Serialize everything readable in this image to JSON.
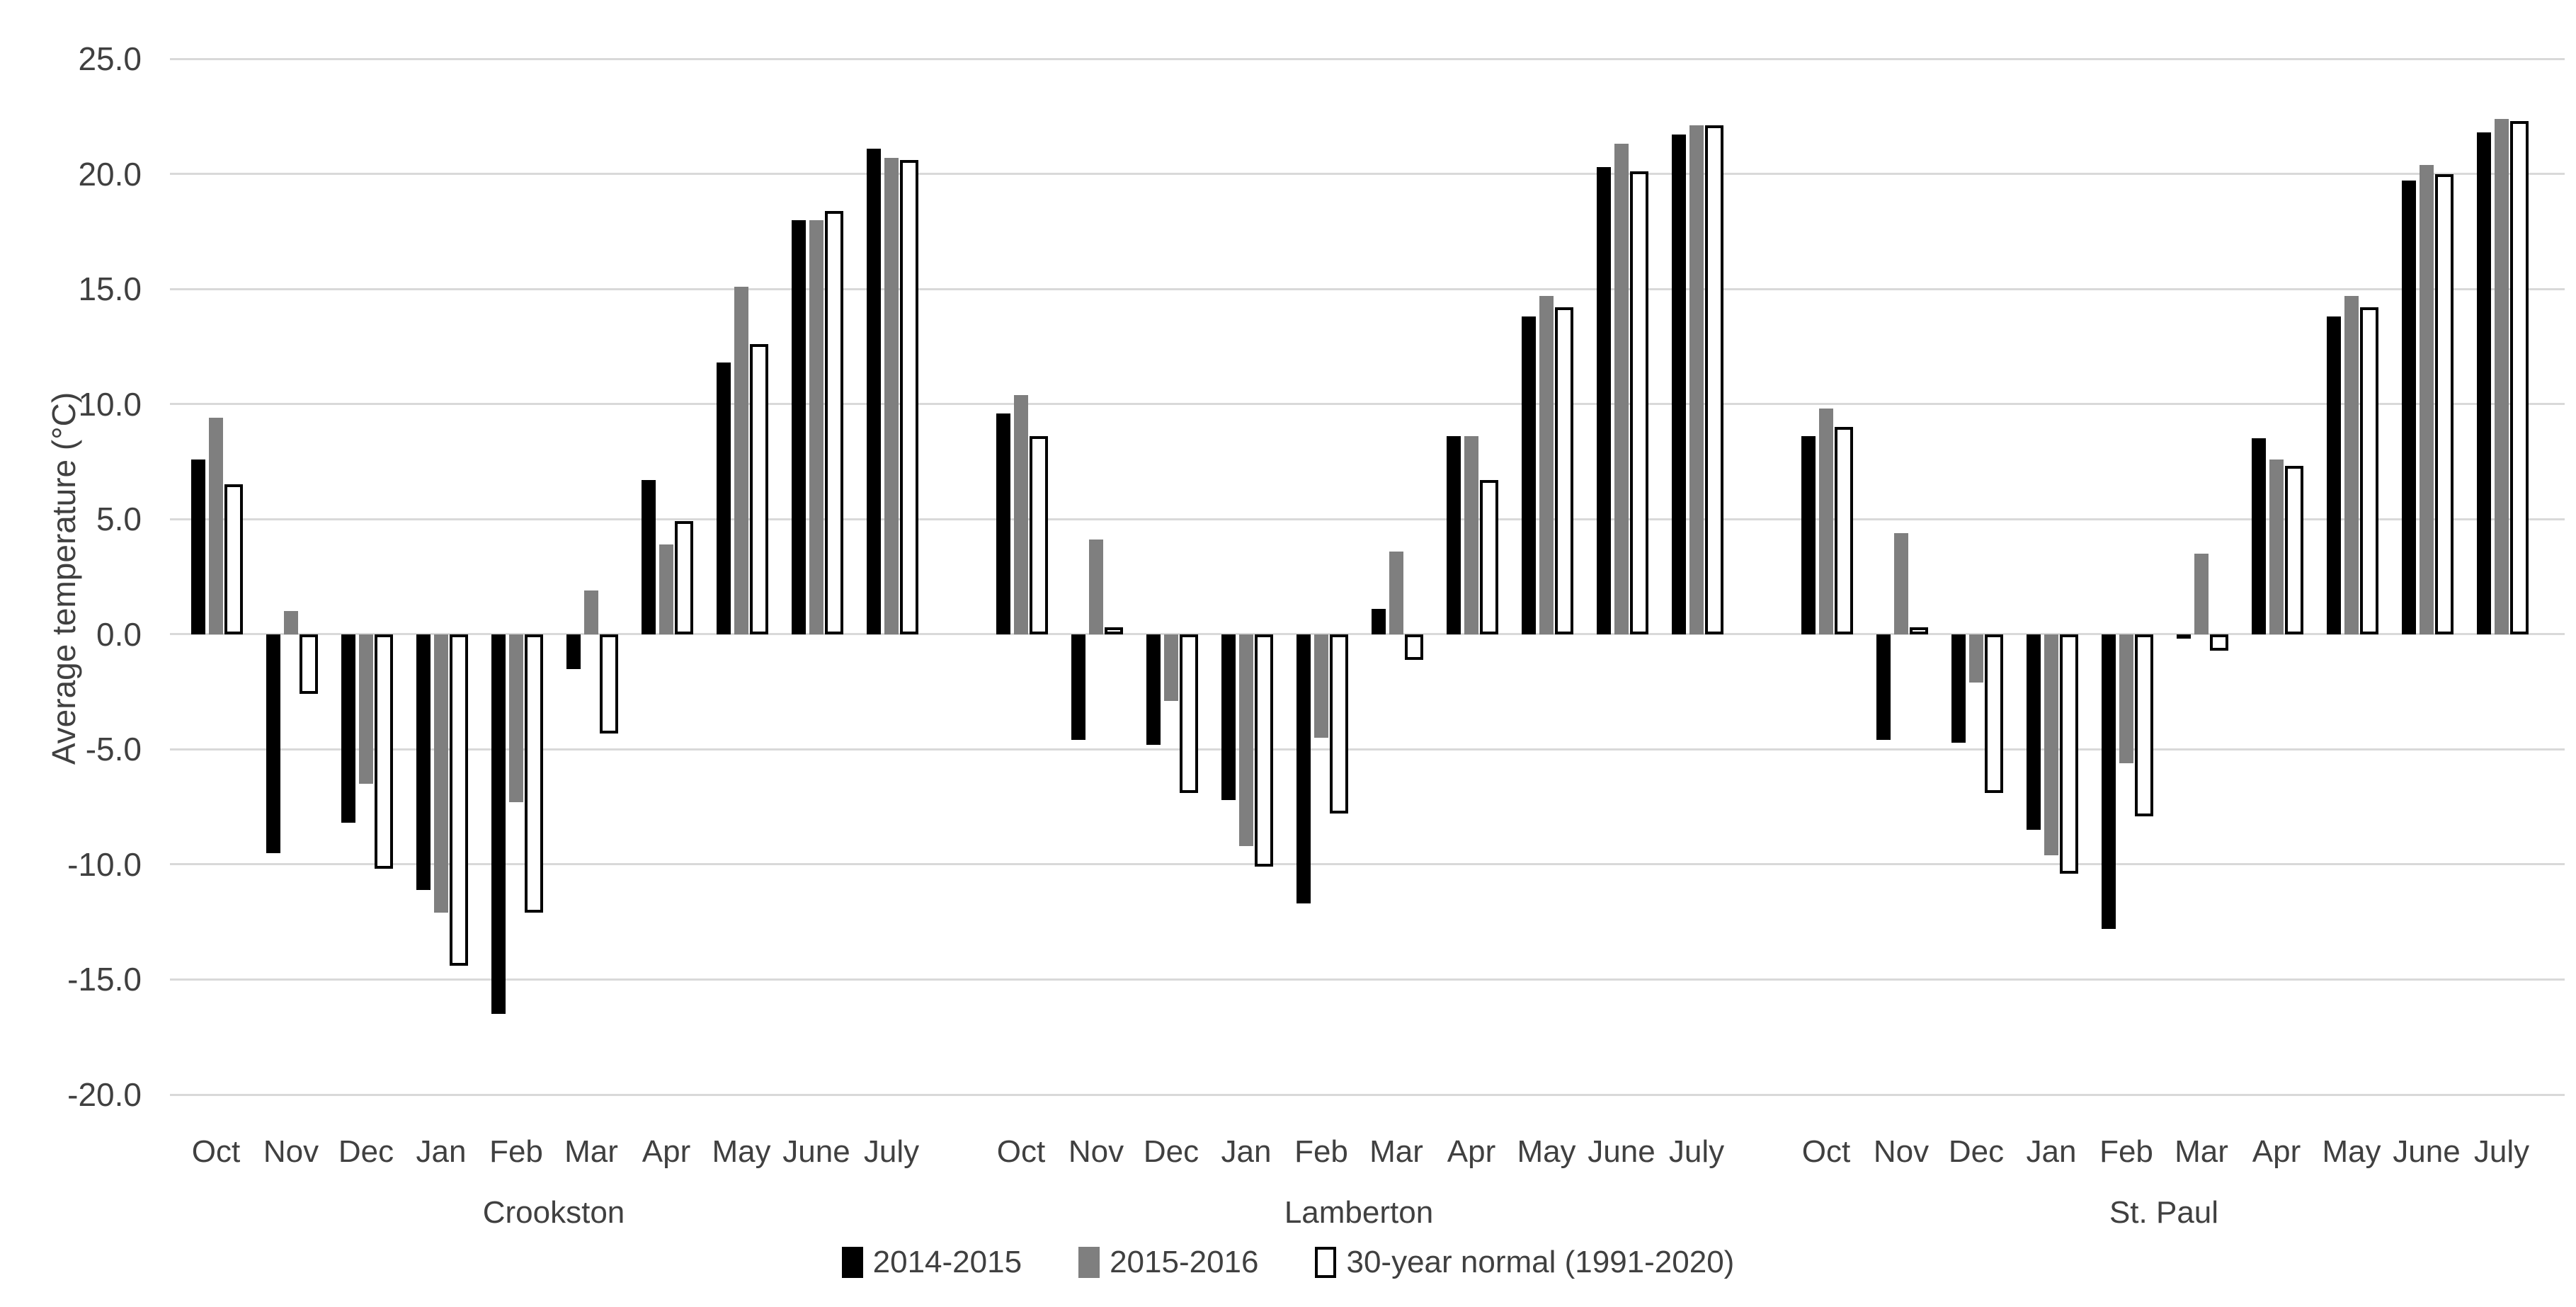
{
  "chart_data": {
    "type": "bar",
    "title": "",
    "xlabel": "",
    "ylabel": "Average temperature (°C)",
    "ylim": [
      -20,
      25
    ],
    "ytick_step": 5,
    "ytick_labels": [
      "25.0",
      "20.0",
      "15.0",
      "10.0",
      "5.0",
      "0.0",
      "-5.0",
      "-10.0",
      "-15.0",
      "-20.0"
    ],
    "grid": true,
    "legend_position": "bottom-center",
    "months": [
      "Oct",
      "Nov",
      "Dec",
      "Jan",
      "Feb",
      "Mar",
      "Apr",
      "May",
      "June",
      "July"
    ],
    "stations": [
      "Crookston",
      "Lamberton",
      "St. Paul"
    ],
    "series": [
      {
        "name": "2014-2015",
        "color": "#000000",
        "outline": null,
        "values": [
          [
            7.6,
            -9.5,
            -8.2,
            -11.1,
            -16.5,
            -1.5,
            6.7,
            11.8,
            18.0,
            21.1
          ],
          [
            9.6,
            -4.6,
            -4.8,
            -7.2,
            -11.7,
            1.1,
            8.6,
            13.8,
            20.3,
            21.7
          ],
          [
            8.6,
            -4.6,
            -4.7,
            -8.5,
            -12.8,
            -0.2,
            8.5,
            13.8,
            19.7,
            21.8
          ]
        ]
      },
      {
        "name": "2015-2016",
        "color": "#7f7f7f",
        "outline": null,
        "values": [
          [
            9.4,
            1.0,
            -6.5,
            -12.1,
            -7.3,
            1.9,
            3.9,
            15.1,
            18.0,
            20.7
          ],
          [
            10.4,
            4.1,
            -2.9,
            -9.2,
            -4.5,
            3.6,
            8.6,
            14.7,
            21.3,
            22.1
          ],
          [
            9.8,
            4.4,
            -2.1,
            -9.6,
            -5.6,
            3.5,
            7.6,
            14.7,
            20.4,
            22.4
          ]
        ]
      },
      {
        "name": "30-year normal (1991-2020)",
        "color": "#ffffff",
        "outline": "#000000",
        "values": [
          [
            6.5,
            -2.6,
            -10.2,
            -14.4,
            -12.1,
            -4.3,
            4.9,
            12.6,
            18.4,
            20.6
          ],
          [
            8.6,
            0.3,
            -6.9,
            -10.1,
            -7.8,
            -1.1,
            6.7,
            14.2,
            20.1,
            22.1
          ],
          [
            9.0,
            0.3,
            -6.9,
            -10.4,
            -7.9,
            -0.7,
            7.3,
            14.2,
            20.0,
            22.3
          ]
        ]
      }
    ]
  },
  "colors": {
    "gridline": "#d9d9d9",
    "text": "#404040",
    "background": "#ffffff"
  }
}
